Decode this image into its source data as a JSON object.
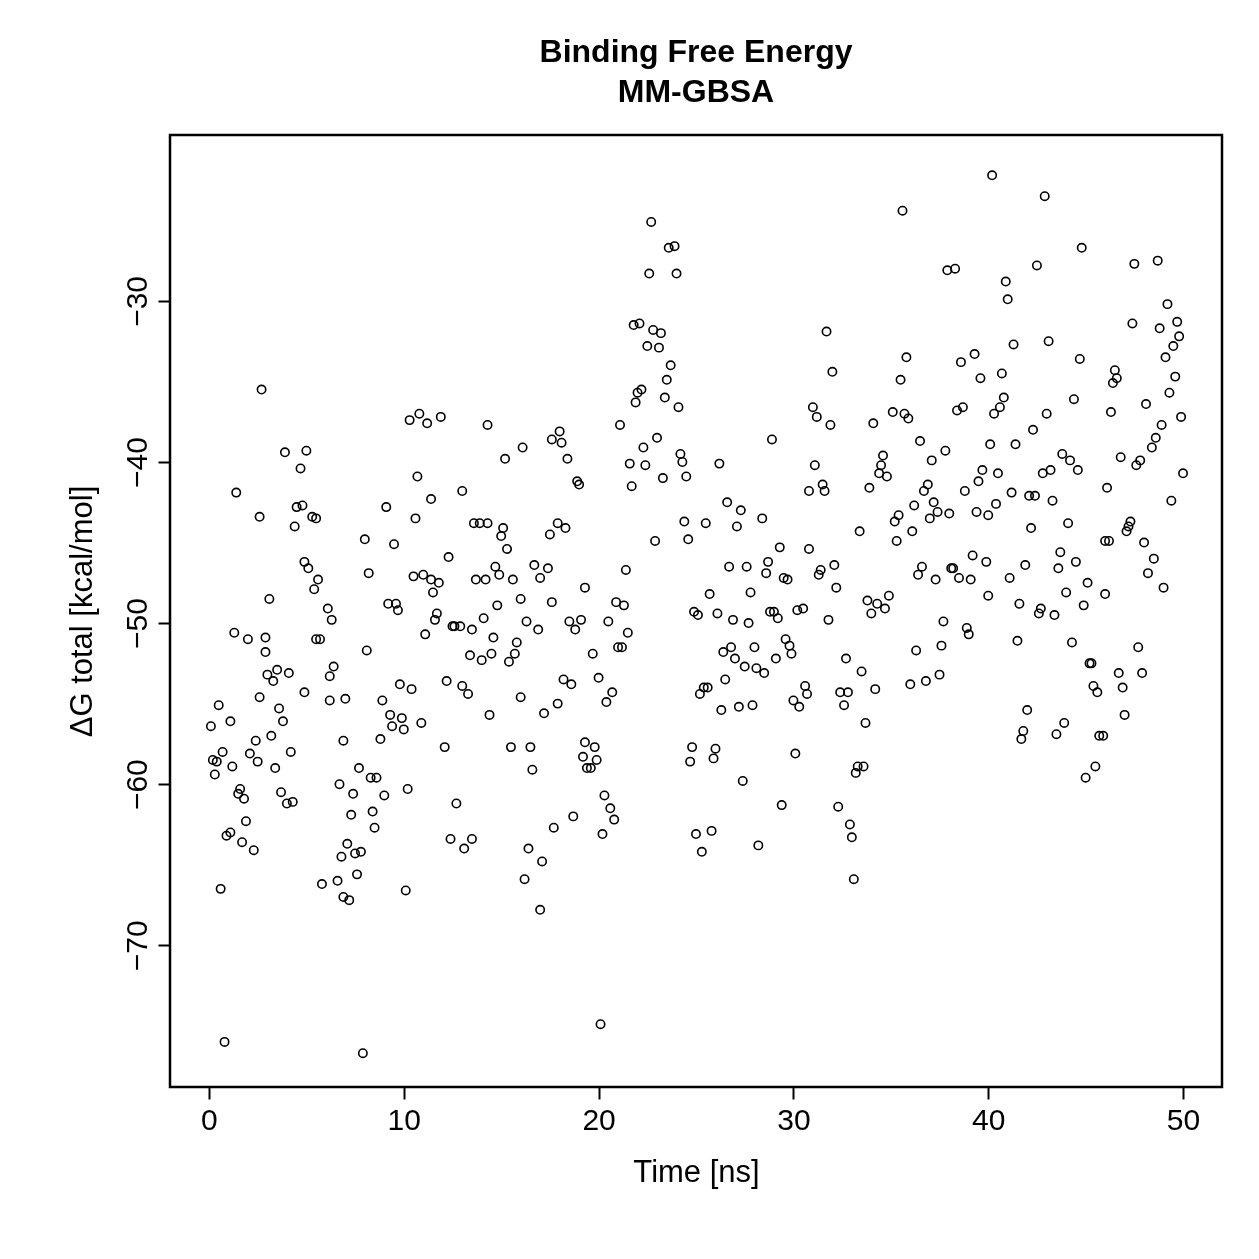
{
  "chart_data": {
    "type": "scatter",
    "title": "Binding Free Energy",
    "subtitle": "MM-GBSA",
    "xlabel": "Time [ns]",
    "ylabel": "ΔG total [kcal/mol]",
    "xlim": [
      -2,
      52
    ],
    "ylim": [
      -78.8,
      -19.7
    ],
    "xticks": [
      0,
      10,
      20,
      30,
      40,
      50
    ],
    "yticks": [
      -70,
      -60,
      -50,
      -40,
      -30
    ],
    "grid": false,
    "marker": "circle",
    "series": [
      {
        "color": "#000000",
        "x": [
          0.1,
          0.2,
          0.3,
          0.5,
          0.4,
          0.6,
          0.7,
          0.8,
          0.9,
          1.1,
          1.1,
          1.2,
          1.3,
          1.4,
          1.5,
          1.6,
          1.7,
          1.8,
          1.9,
          2.0,
          2.1,
          2.3,
          2.4,
          2.5,
          2.6,
          2.6,
          2.7,
          2.9,
          2.9,
          3.1,
          3.0,
          3.2,
          3.3,
          3.4,
          3.5,
          3.6,
          3.7,
          3.8,
          3.9,
          4.0,
          4.1,
          4.2,
          4.3,
          4.4,
          4.5,
          4.7,
          4.8,
          4.9,
          4.9,
          5.0,
          5.1,
          5.3,
          5.4,
          5.5,
          5.6,
          5.5,
          5.7,
          5.8,
          6.1,
          6.2,
          6.2,
          6.3,
          6.4,
          6.6,
          6.7,
          6.8,
          6.9,
          7.0,
          6.9,
          7.2,
          7.1,
          7.3,
          7.4,
          7.5,
          7.6,
          7.7,
          7.8,
          7.9,
          8.0,
          8.1,
          8.2,
          8.3,
          8.4,
          8.5,
          8.6,
          8.8,
          8.9,
          9.0,
          9.1,
          9.2,
          9.3,
          9.4,
          9.5,
          9.6,
          9.7,
          9.8,
          9.9,
          10.0,
          10.1,
          10.2,
          10.3,
          10.4,
          10.5,
          10.6,
          10.7,
          10.8,
          10.9,
          11.0,
          11.1,
          11.2,
          11.4,
          11.4,
          11.5,
          11.6,
          11.7,
          11.8,
          11.9,
          12.1,
          12.2,
          12.3,
          12.4,
          12.5,
          12.6,
          12.7,
          12.9,
          13.0,
          13.0,
          13.1,
          13.3,
          13.4,
          13.5,
          13.5,
          13.6,
          13.7,
          13.9,
          14.0,
          14.1,
          14.2,
          14.3,
          14.3,
          14.4,
          14.5,
          14.6,
          14.7,
          14.8,
          14.9,
          15.0,
          15.1,
          15.2,
          15.3,
          15.4,
          15.5,
          15.6,
          15.7,
          15.8,
          16.0,
          16.0,
          16.1,
          16.2,
          16.3,
          16.4,
          16.5,
          16.6,
          16.7,
          16.9,
          17.0,
          17.0,
          17.1,
          17.2,
          17.4,
          17.5,
          17.6,
          17.6,
          17.7,
          17.9,
          17.9,
          18.0,
          18.1,
          18.2,
          18.3,
          18.4,
          18.5,
          18.6,
          18.7,
          18.8,
          18.9,
          19.0,
          19.1,
          19.2,
          19.3,
          19.3,
          19.4,
          19.6,
          19.7,
          19.8,
          19.9,
          20.0,
          20.1,
          20.2,
          20.3,
          20.4,
          20.5,
          20.6,
          20.7,
          20.8,
          20.9,
          21.0,
          21.1,
          21.2,
          21.3,
          21.4,
          21.5,
          21.6,
          21.7,
          21.8,
          21.9,
          22.0,
          22.1,
          22.2,
          22.3,
          22.4,
          22.5,
          22.6,
          22.7,
          22.8,
          22.9,
          23.0,
          23.1,
          23.2,
          23.3,
          23.4,
          23.5,
          23.6,
          23.7,
          23.9,
          24.0,
          24.1,
          24.2,
          24.3,
          24.4,
          24.5,
          24.6,
          24.7,
          24.8,
          24.9,
          25.0,
          25.1,
          25.2,
          25.3,
          25.4,
          25.5,
          25.6,
          25.7,
          25.8,
          25.9,
          26.0,
          26.1,
          26.2,
          26.3,
          26.4,
          26.5,
          26.6,
          26.7,
          26.8,
          26.9,
          27.0,
          27.1,
          27.2,
          27.3,
          27.4,
          27.5,
          27.6,
          27.7,
          27.8,
          27.9,
          28.0,
          28.1,
          28.2,
          28.4,
          28.5,
          28.6,
          28.7,
          28.8,
          28.9,
          29.0,
          29.1,
          29.2,
          29.3,
          29.4,
          29.5,
          29.6,
          29.7,
          29.8,
          29.9,
          30.0,
          30.1,
          30.2,
          30.3,
          30.5,
          30.6,
          30.7,
          30.8,
          30.8,
          31.0,
          31.1,
          31.2,
          31.3,
          31.4,
          31.5,
          31.6,
          31.7,
          31.8,
          31.9,
          32.0,
          32.1,
          32.2,
          32.3,
          32.4,
          32.6,
          32.7,
          32.8,
          32.9,
          33.0,
          33.1,
          33.2,
          33.3,
          33.4,
          33.5,
          33.6,
          33.7,
          33.8,
          33.9,
          34.0,
          34.1,
          34.2,
          34.3,
          34.4,
          34.5,
          34.6,
          34.7,
          34.8,
          34.9,
          35.1,
          35.2,
          35.3,
          35.4,
          35.5,
          35.6,
          35.7,
          35.8,
          35.9,
          36.0,
          36.1,
          36.2,
          36.3,
          36.4,
          36.5,
          36.6,
          36.7,
          36.8,
          36.9,
          37.0,
          37.1,
          37.2,
          37.3,
          37.4,
          37.5,
          37.6,
          37.7,
          37.8,
          37.9,
          38.0,
          38.1,
          38.2,
          38.3,
          38.4,
          38.5,
          38.6,
          38.7,
          38.8,
          38.9,
          39.0,
          39.1,
          39.2,
          39.3,
          39.4,
          39.5,
          39.6,
          39.7,
          39.9,
          40.0,
          40.0,
          40.1,
          40.2,
          40.3,
          40.4,
          40.5,
          40.6,
          40.7,
          40.8,
          40.9,
          41.0,
          41.1,
          41.2,
          41.3,
          41.4,
          41.5,
          41.6,
          41.7,
          41.8,
          41.9,
          42.0,
          42.1,
          42.2,
          42.3,
          42.4,
          42.5,
          42.6,
          42.7,
          42.8,
          42.9,
          43.0,
          43.1,
          43.2,
          43.3,
          43.4,
          43.5,
          43.6,
          43.7,
          43.8,
          43.9,
          44.0,
          44.1,
          44.2,
          44.3,
          44.4,
          44.5,
          44.6,
          44.7,
          44.8,
          44.9,
          45.0,
          45.1,
          45.2,
          45.3,
          45.4,
          45.5,
          45.6,
          45.7,
          45.9,
          46.0,
          46.0,
          46.1,
          46.2,
          46.3,
          46.4,
          46.5,
          46.6,
          46.7,
          46.8,
          46.9,
          47.0,
          47.1,
          47.2,
          47.3,
          47.4,
          47.5,
          47.6,
          47.7,
          47.8,
          47.9,
          48.0,
          48.1,
          48.2,
          48.4,
          48.5,
          48.6,
          48.7,
          48.8,
          48.9,
          49.0,
          49.1,
          49.2,
          49.3,
          49.4,
          49.5,
          49.6,
          49.7,
          49.8,
          49.9,
          50.0
        ],
        "values": [
          -56.4,
          -58.5,
          -59.4,
          -55.1,
          -58.6,
          -66.5,
          -58.0,
          -76.0,
          -63.2,
          -63.0,
          -56.1,
          -58.9,
          -50.6,
          -41.9,
          -60.6,
          -60.3,
          -63.6,
          -60.9,
          -62.3,
          -51.0,
          -58.1,
          -64.1,
          -57.3,
          -58.6,
          -54.6,
          -43.4,
          -35.5,
          -51.8,
          -50.9,
          -48.5,
          -53.2,
          -57.0,
          -53.6,
          -59.0,
          -52.9,
          -55.3,
          -60.5,
          -56.1,
          -39.4,
          -61.2,
          -53.1,
          -58.0,
          -61.1,
          -44.0,
          -42.8,
          -40.4,
          -42.7,
          -46.2,
          -54.3,
          -39.3,
          -46.6,
          -43.4,
          -47.9,
          -43.5,
          -47.3,
          -51.0,
          -51.0,
          -66.2,
          -49.1,
          -53.3,
          -54.8,
          -49.8,
          -52.7,
          -66.0,
          -60.0,
          -64.5,
          -57.3,
          -54.7,
          -67.0,
          -67.2,
          -63.7,
          -61.9,
          -60.6,
          -64.3,
          -65.6,
          -59.0,
          -64.2,
          -76.7,
          -44.8,
          -51.7,
          -46.9,
          -59.6,
          -61.7,
          -62.7,
          -59.6,
          -57.2,
          -54.8,
          -60.7,
          -42.8,
          -48.8,
          -55.7,
          -56.4,
          -45.1,
          -48.8,
          -49.2,
          -53.8,
          -55.9,
          -56.6,
          -66.6,
          -60.3,
          -37.4,
          -54.1,
          -47.1,
          -43.5,
          -40.9,
          -37.0,
          -56.2,
          -47.0,
          -50.7,
          -37.6,
          -47.3,
          -42.3,
          -48.1,
          -49.8,
          -49.4,
          -47.5,
          -37.2,
          -57.7,
          -53.6,
          -45.9,
          -63.4,
          -50.2,
          -50.2,
          -61.2,
          -50.2,
          -41.8,
          -53.9,
          -64.0,
          -54.4,
          -52.0,
          -50.4,
          -63.4,
          -43.8,
          -47.3,
          -43.8,
          -52.3,
          -49.7,
          -47.3,
          -43.8,
          -37.7,
          -55.7,
          -51.9,
          -50.9,
          -46.5,
          -48.9,
          -47.0,
          -44.6,
          -44.1,
          -39.8,
          -45.4,
          -52.4,
          -57.7,
          -47.3,
          -51.9,
          -51.2,
          -48.5,
          -54.6,
          -39.1,
          -65.9,
          -49.9,
          -64.0,
          -57.7,
          -59.1,
          -46.4,
          -50.4,
          -47.2,
          -67.8,
          -64.8,
          -55.6,
          -46.6,
          -44.5,
          -48.7,
          -38.6,
          -62.7,
          -43.8,
          -55.0,
          -38.1,
          -38.8,
          -53.5,
          -44.1,
          -39.8,
          -49.9,
          -53.8,
          -62.0,
          -50.4,
          -41.2,
          -41.4,
          -49.8,
          -58.3,
          -47.8,
          -57.4,
          -59.0,
          -59.0,
          -51.9,
          -57.7,
          -58.5,
          -53.4,
          -74.9,
          -63.1,
          -60.7,
          -54.9,
          -49.9,
          -61.5,
          -54.3,
          -62.2,
          -48.7,
          -51.5,
          -37.7,
          -51.5,
          -48.9,
          -46.7,
          -50.6,
          -40.1,
          -41.5,
          -31.5,
          -36.3,
          -35.7,
          -31.4,
          -35.5,
          -39.1,
          -40.2,
          -32.8,
          -28.3,
          -25.1,
          -31.8,
          -44.9,
          -38.5,
          -32.9,
          -32.0,
          -41.0,
          -36.0,
          -34.9,
          -26.7,
          -34.0,
          -26.6,
          -28.3,
          -36.6,
          -39.5,
          -40.0,
          -43.7,
          -40.9,
          -44.8,
          -58.6,
          -57.7,
          -49.3,
          -63.1,
          -49.5,
          -54.4,
          -64.2,
          -54.0,
          -43.8,
          -54.0,
          -48.2,
          -62.9,
          -58.4,
          -57.8,
          -49.4,
          -40.1,
          -55.4,
          -51.8,
          -53.5,
          -42.5,
          -46.5,
          -51.5,
          -49.8,
          -52.2,
          -44.0,
          -55.2,
          -43.0,
          -59.8,
          -52.7,
          -46.5,
          -50.0,
          -48.1,
          -55.1,
          -51.5,
          -52.8,
          -63.8,
          -43.5,
          -53.1,
          -46.9,
          -46.2,
          -49.3,
          -38.6,
          -49.3,
          -52.2,
          -49.7,
          -45.3,
          -61.3,
          -47.2,
          -51.0,
          -47.3,
          -51.4,
          -51.9,
          -54.8,
          -58.1,
          -49.2,
          -55.2,
          -49.1,
          -53.9,
          -54.4,
          -45.4,
          -41.8,
          -36.6,
          -40.2,
          -37.2,
          -47.0,
          -46.7,
          -41.4,
          -41.8,
          -31.9,
          -49.8,
          -37.7,
          -34.4,
          -46.4,
          -47.8,
          -61.4,
          -54.3,
          -55.1,
          -52.2,
          -54.3,
          -62.5,
          -63.3,
          -65.9,
          -59.3,
          -58.9,
          -44.3,
          -53.0,
          -58.9,
          -56.2,
          -48.6,
          -41.6,
          -49.4,
          -37.6,
          -54.1,
          -48.8,
          -40.7,
          -40.2,
          -39.6,
          -49.1,
          -40.9,
          -48.3,
          -36.9,
          -43.7,
          -44.9,
          -43.3,
          -34.9,
          -24.4,
          -37.0,
          -33.5,
          -37.3,
          -53.8,
          -44.3,
          -42.7,
          -51.7,
          -47.0,
          -38.7,
          -46.5,
          -41.8,
          -53.6,
          -41.4,
          -43.5,
          -39.9,
          -42.5,
          -47.3,
          -43.1,
          -53.2,
          -51.4,
          -49.9,
          -39.3,
          -28.1,
          -43.2,
          -46.6,
          -46.6,
          -28.0,
          -36.8,
          -47.2,
          -33.8,
          -36.6,
          -41.8,
          -50.3,
          -50.7,
          -47.3,
          -45.8,
          -33.3,
          -43.1,
          -41.2,
          -34.8,
          -40.5,
          -46.2,
          -43.3,
          -48.3,
          -38.9,
          -22.2,
          -37.0,
          -42.6,
          -40.7,
          -36.6,
          -34.5,
          -36.0,
          -28.8,
          -29.9,
          -47.2,
          -41.9,
          -32.7,
          -38.9,
          -51.1,
          -48.8,
          -57.2,
          -56.7,
          -46.4,
          -55.4,
          -42.1,
          -44.1,
          -38.0,
          -42.1,
          -27.8,
          -49.4,
          -49.1,
          -40.7,
          -23.5,
          -37.0,
          -32.5,
          -40.5,
          -42.4,
          -49.5,
          -56.9,
          -46.6,
          -45.6,
          -39.5,
          -56.2,
          -48.1,
          -43.8,
          -39.9,
          -51.2,
          -36.1,
          -46.2,
          -40.5,
          -33.6,
          -26.7,
          -48.9,
          -59.6,
          -47.5,
          -52.5,
          -52.5,
          -53.9,
          -58.9,
          -54.3,
          -57.0,
          -57.0,
          -44.9,
          -48.2,
          -41.6,
          -44.9,
          -36.9,
          -35.1,
          -34.3,
          -34.8,
          -53.1,
          -39.7,
          -54.0,
          -55.7,
          -44.3,
          -44.0,
          -43.7,
          -31.4,
          -27.7,
          -40.2,
          -51.5,
          -39.9,
          -53.1,
          -45.0,
          -36.4,
          -46.9,
          -39.1,
          -46.0,
          -38.5,
          -27.5,
          -31.7,
          -37.7,
          -47.8,
          -33.5,
          -30.2,
          -35.7,
          -42.4,
          -32.8,
          -34.7,
          -31.3,
          -32.2,
          -37.2,
          -40.7
        ]
      }
    ]
  }
}
